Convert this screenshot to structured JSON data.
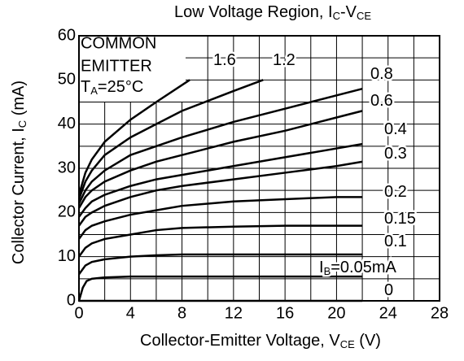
{
  "chart_data": {
    "type": "line",
    "title": [
      "Low Voltage Region, I",
      "C",
      "-V",
      "CE"
    ],
    "xlabel": [
      "Collector-Emitter Voltage, V",
      "CE",
      " (V)"
    ],
    "ylabel": [
      "Collector Current, I",
      "C",
      " (mA)"
    ],
    "annotation": [
      "COMMON",
      "EMITTER",
      "T",
      "A",
      "=25°C"
    ],
    "xlim": [
      0,
      28
    ],
    "ylim": [
      0,
      60
    ],
    "xticks": [
      0,
      4,
      8,
      12,
      16,
      20,
      24,
      28
    ],
    "yticks": [
      0,
      10,
      20,
      30,
      40,
      50,
      60
    ],
    "xgrid": [
      0,
      2,
      4,
      6,
      8,
      10,
      12,
      14,
      16,
      18,
      20,
      22,
      24,
      26,
      28
    ],
    "ygrid": [
      0,
      5,
      10,
      15,
      20,
      25,
      30,
      35,
      40,
      45,
      50,
      55,
      60
    ],
    "grid": true,
    "color": "#000000",
    "series": [
      {
        "name": [
          "1.6"
        ],
        "x": [
          0,
          0.5,
          1,
          2,
          4,
          6,
          8.6
        ],
        "values": [
          24,
          29,
          32,
          36,
          41,
          45,
          50
        ]
      },
      {
        "name": [
          "1.2"
        ],
        "x": [
          0,
          0.5,
          1,
          2,
          4,
          6,
          8,
          12,
          14.3
        ],
        "values": [
          23,
          27,
          29.5,
          33,
          37,
          40,
          43,
          47.5,
          50
        ]
      },
      {
        "name": [
          "0.8"
        ],
        "x": [
          0,
          0.5,
          1,
          2,
          4,
          6,
          8,
          12,
          16,
          20,
          22
        ],
        "values": [
          22,
          25,
          27,
          29.5,
          33,
          35,
          37,
          40.5,
          43.5,
          46.5,
          48
        ]
      },
      {
        "name": [
          "0.6"
        ],
        "x": [
          0,
          0.5,
          1,
          2,
          4,
          6,
          8,
          12,
          16,
          20,
          22
        ],
        "values": [
          21,
          23.5,
          25,
          27,
          29.5,
          31.5,
          33,
          36,
          38.5,
          41.5,
          43
        ]
      },
      {
        "name": [
          "0.4"
        ],
        "x": [
          0,
          0.5,
          1,
          2,
          4,
          6,
          8,
          12,
          16,
          20,
          22
        ],
        "values": [
          19,
          21,
          22.5,
          24,
          26,
          27.5,
          28.5,
          30.5,
          32.5,
          34.5,
          35.5
        ]
      },
      {
        "name": [
          "0.3"
        ],
        "x": [
          0,
          0.5,
          1,
          2,
          4,
          6,
          8,
          12,
          16,
          20,
          22
        ],
        "values": [
          17,
          19,
          20,
          21.5,
          23.5,
          25,
          26,
          27.5,
          29,
          30.5,
          31.5
        ]
      },
      {
        "name": [
          "0.2"
        ],
        "x": [
          0,
          0.5,
          1,
          2,
          4,
          6,
          8,
          12,
          16,
          20,
          22
        ],
        "values": [
          14,
          16,
          17,
          18,
          19.5,
          20.5,
          21.5,
          22.5,
          23,
          23.5,
          23.5
        ]
      },
      {
        "name": [
          "0.15"
        ],
        "x": [
          0,
          0.5,
          1,
          2,
          4,
          6,
          8,
          12,
          16,
          20,
          22
        ],
        "values": [
          10,
          12,
          13,
          14,
          15,
          16,
          16.5,
          16.8,
          17,
          17,
          17
        ]
      },
      {
        "name": [
          "0.1"
        ],
        "x": [
          0,
          0.5,
          1,
          2,
          4,
          6,
          8,
          12,
          16,
          20,
          22
        ],
        "values": [
          6,
          8,
          8.8,
          9.4,
          10,
          10.3,
          10.5,
          10.5,
          10.5,
          10.5,
          10.5
        ]
      },
      {
        "name": [
          "I",
          "B",
          "=0.05mA"
        ],
        "x": [
          0,
          0.3,
          0.6,
          1,
          2,
          4,
          8,
          12,
          16,
          20,
          22
        ],
        "values": [
          0,
          3,
          4.5,
          5,
          5.3,
          5.5,
          5.5,
          5.5,
          5.5,
          5.5,
          5.5
        ]
      },
      {
        "name": [
          "0"
        ],
        "x": [
          0,
          22
        ],
        "values": [
          0,
          0
        ]
      }
    ]
  }
}
